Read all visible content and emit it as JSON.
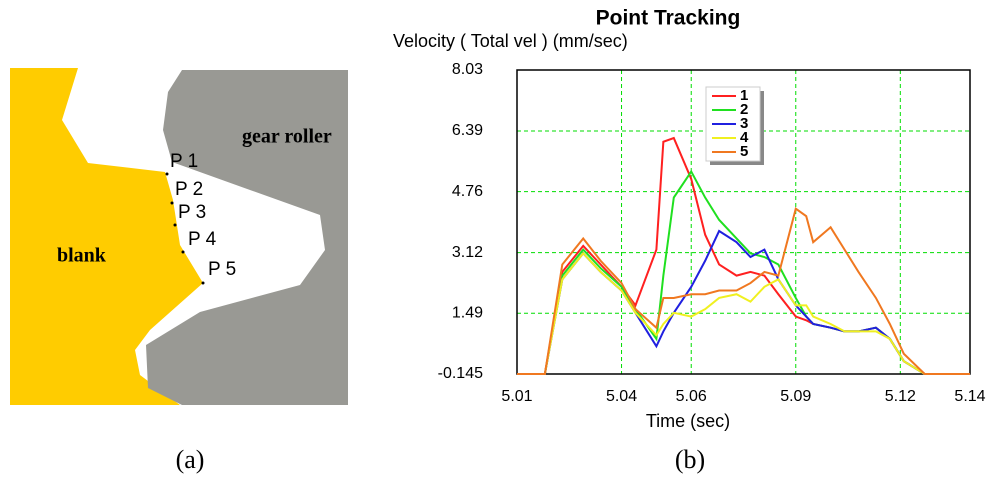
{
  "diagram": {
    "labels": [
      "gear roller",
      "blank",
      "P 1",
      "P 2",
      "P 3",
      "P 4",
      "P 5"
    ],
    "caption": "(a)"
  },
  "chart_data": {
    "type": "line",
    "title": "Point Tracking",
    "y_label": "Velocity ( Total vel )  (mm/sec)",
    "x_label": "Time (sec)",
    "caption": "(b)",
    "x": [
      5.01,
      5.018,
      5.023,
      5.029,
      5.034,
      5.04,
      5.044,
      5.05,
      5.052,
      5.055,
      5.06,
      5.064,
      5.068,
      5.073,
      5.077,
      5.081,
      5.085,
      5.09,
      5.093,
      5.095,
      5.1,
      5.104,
      5.108,
      5.113,
      5.117,
      5.121,
      5.127,
      5.14
    ],
    "series": [
      {
        "name": "1",
        "color": "#ff2020",
        "values": [
          -0.145,
          -0.145,
          2.6,
          3.3,
          2.8,
          2.2,
          1.7,
          3.2,
          6.1,
          6.2,
          5.1,
          3.6,
          2.8,
          2.5,
          2.6,
          2.5,
          2.0,
          1.4,
          1.3,
          1.2,
          1.1,
          1.0,
          1.0,
          1.1,
          0.8,
          0.2,
          -0.145,
          -0.145
        ]
      },
      {
        "name": "2",
        "color": "#20e020",
        "values": [
          -0.145,
          -0.145,
          2.5,
          3.2,
          2.7,
          2.2,
          1.6,
          0.8,
          2.5,
          4.6,
          5.3,
          4.6,
          4.0,
          3.5,
          3.1,
          3.0,
          2.8,
          1.9,
          1.4,
          1.2,
          1.1,
          1.0,
          1.0,
          1.1,
          0.8,
          0.2,
          -0.145,
          -0.145
        ]
      },
      {
        "name": "3",
        "color": "#2020e0",
        "values": [
          -0.145,
          -0.145,
          2.4,
          3.1,
          2.6,
          2.1,
          1.5,
          0.6,
          1.0,
          1.5,
          2.2,
          2.9,
          3.7,
          3.4,
          3.0,
          3.2,
          2.4,
          1.7,
          1.4,
          1.2,
          1.1,
          1.0,
          1.0,
          1.1,
          0.8,
          0.2,
          -0.145,
          -0.145
        ]
      },
      {
        "name": "4",
        "color": "#f0f020",
        "values": [
          -0.145,
          -0.145,
          2.4,
          3.1,
          2.6,
          2.1,
          1.5,
          0.9,
          1.2,
          1.5,
          1.4,
          1.6,
          1.9,
          2.0,
          1.8,
          2.2,
          2.4,
          1.7,
          1.7,
          1.4,
          1.2,
          1.0,
          1.0,
          1.0,
          0.8,
          0.2,
          -0.145,
          -0.145
        ]
      },
      {
        "name": "5",
        "color": "#f07820",
        "values": [
          -0.145,
          -0.145,
          2.8,
          3.5,
          2.9,
          2.3,
          1.6,
          1.1,
          1.9,
          1.9,
          2.0,
          2.0,
          2.1,
          2.1,
          2.3,
          2.6,
          2.5,
          4.3,
          4.1,
          3.4,
          3.8,
          3.2,
          2.6,
          1.9,
          1.2,
          0.4,
          -0.145,
          -0.145
        ]
      }
    ],
    "xlim": [
      5.01,
      5.14
    ],
    "xticks": [
      5.01,
      5.04,
      5.06,
      5.09,
      5.12,
      5.14
    ],
    "ylim": [
      -0.145,
      8.03
    ],
    "yticks": [
      -0.145,
      1.49,
      3.12,
      4.76,
      6.39,
      8.03
    ],
    "grid": true,
    "grid_color": "#00dd00",
    "legend": "upper center"
  }
}
